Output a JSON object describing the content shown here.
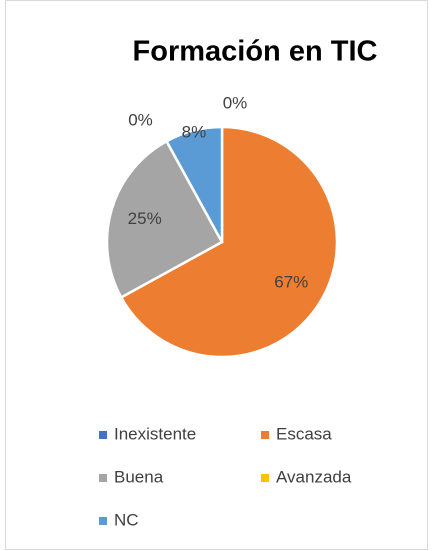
{
  "chart_data": {
    "type": "pie",
    "title": "Formación en TIC",
    "categories": [
      "Inexistente",
      "Escasa",
      "Buena",
      "Avanzada",
      "NC"
    ],
    "values": [
      0,
      67,
      25,
      0,
      8
    ],
    "value_labels": [
      "0%",
      "67%",
      "25%",
      "0%",
      "8%"
    ],
    "colors": [
      "#4472c4",
      "#ed7d31",
      "#a5a5a5",
      "#ffc000",
      "#5b9bd5"
    ],
    "legend": "bottom"
  }
}
